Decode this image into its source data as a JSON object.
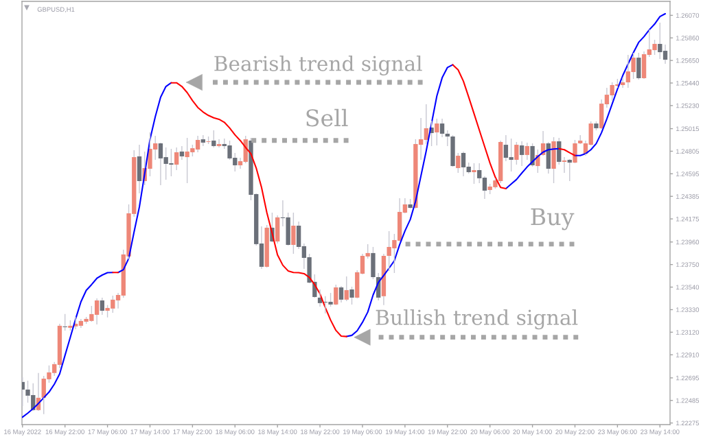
{
  "chart_data": {
    "type": "candlestick",
    "title": "GBPUSD,H1",
    "categories": [
      "16 May 2022",
      null,
      null,
      null,
      null,
      null,
      null,
      null,
      "16 May 22:00",
      null,
      null,
      null,
      null,
      null,
      null,
      null,
      "17 May 06:00",
      null,
      null,
      null,
      null,
      null,
      null,
      null,
      "17 May 14:00",
      null,
      null,
      null,
      null,
      null,
      null,
      null,
      "17 May 22:00",
      null,
      null,
      null,
      null,
      null,
      null,
      null,
      "18 May 06:00",
      null,
      null,
      null,
      null,
      null,
      null,
      null,
      "18 May 14:00",
      null,
      null,
      null,
      null,
      null,
      null,
      null,
      "18 May 22:00",
      null,
      null,
      null,
      null,
      null,
      null,
      null,
      "19 May 06:00",
      null,
      null,
      null,
      null,
      null,
      null,
      null,
      "19 May 14:00",
      null,
      null,
      null,
      null,
      null,
      null,
      null,
      "19 May 22:00",
      null,
      null,
      null,
      null,
      null,
      null,
      null,
      "20 May 06:00",
      null,
      null,
      null,
      null,
      null,
      null,
      null,
      "20 May 14:00",
      null,
      null,
      null,
      null,
      null,
      null,
      null,
      "20 May 22:00",
      null,
      null,
      null,
      null,
      null,
      null,
      null,
      "23 May 06:00",
      null,
      null,
      null,
      null,
      null,
      null,
      null,
      "23 May 14:00",
      null
    ],
    "ohlc": [
      [
        1.22657,
        1.22701,
        1.22433,
        1.22586
      ],
      [
        1.22586,
        1.22669,
        1.22465,
        1.22529
      ],
      [
        1.22535,
        1.22644,
        1.22388,
        1.22395
      ],
      [
        1.22395,
        1.2274,
        1.22388,
        1.2251
      ],
      [
        1.2251,
        1.22714,
        1.22357,
        1.22688
      ],
      [
        1.22682,
        1.2281,
        1.2265,
        1.22746
      ],
      [
        1.2274,
        1.22842,
        1.22714,
        1.22823
      ],
      [
        1.22816,
        1.23199,
        1.22784,
        1.2318
      ],
      [
        1.23174,
        1.23289,
        1.23135,
        1.23167
      ],
      [
        1.23161,
        1.23231,
        1.23135,
        1.2318
      ],
      [
        1.23174,
        1.23263,
        1.23148,
        1.23199
      ],
      [
        1.2318,
        1.23244,
        1.23161,
        1.23225
      ],
      [
        1.23218,
        1.23263,
        1.23199,
        1.23244
      ],
      [
        1.23225,
        1.23365,
        1.23218,
        1.23289
      ],
      [
        1.23282,
        1.23435,
        1.23193,
        1.23416
      ],
      [
        1.23416,
        1.23442,
        1.23282,
        1.2332
      ],
      [
        1.2332,
        1.23372,
        1.23257,
        1.23346
      ],
      [
        1.2334,
        1.23461,
        1.23301,
        1.23423
      ],
      [
        1.23416,
        1.23486,
        1.2334,
        1.23467
      ],
      [
        1.23461,
        1.23889,
        1.23442,
        1.23844
      ],
      [
        1.23825,
        1.2431,
        1.23799,
        1.24227
      ],
      [
        1.24221,
        1.24814,
        1.24195,
        1.2475
      ],
      [
        1.24757,
        1.24865,
        1.24412,
        1.24527
      ],
      [
        1.24527,
        1.24802,
        1.24489,
        1.24648
      ],
      [
        1.24642,
        1.2498,
        1.24572,
        1.24827
      ],
      [
        1.24821,
        1.24948,
        1.24725,
        1.24878
      ],
      [
        1.24878,
        1.24885,
        1.24489,
        1.24738
      ],
      [
        1.2475,
        1.2484,
        1.2454,
        1.24687
      ],
      [
        1.24693,
        1.24827,
        1.24572,
        1.2468
      ],
      [
        1.2468,
        1.2484,
        1.24629,
        1.24795
      ],
      [
        1.24802,
        1.24853,
        1.24725,
        1.24757
      ],
      [
        1.2475,
        1.24929,
        1.24508,
        1.24802
      ],
      [
        1.24795,
        1.24865,
        1.24757,
        1.24833
      ],
      [
        1.24821,
        1.24948,
        1.24795,
        1.2491
      ],
      [
        1.24916,
        1.24955,
        1.24853,
        1.24885
      ],
      [
        1.24891,
        1.24942,
        1.24872,
        1.24897
      ],
      [
        1.24904,
        1.24999,
        1.2484,
        1.24853
      ],
      [
        1.24853,
        1.24916,
        1.2484,
        1.24872
      ],
      [
        1.24872,
        1.24923,
        1.24827,
        1.24853
      ],
      [
        1.24859,
        1.24904,
        1.24725,
        1.24738
      ],
      [
        1.24744,
        1.24789,
        1.24616,
        1.24674
      ],
      [
        1.24674,
        1.24744,
        1.24642,
        1.24712
      ],
      [
        1.24706,
        1.24948,
        1.24693,
        1.24916
      ],
      [
        1.24904,
        1.24929,
        1.24348,
        1.24399
      ],
      [
        1.24406,
        1.24412,
        1.23927,
        1.2394
      ],
      [
        1.23946,
        1.24106,
        1.2371,
        1.23729
      ],
      [
        1.23729,
        1.24118,
        1.23723,
        1.24093
      ],
      [
        1.24093,
        1.24233,
        1.23959,
        1.23965
      ],
      [
        1.23965,
        1.24208,
        1.23946,
        1.24189
      ],
      [
        1.24189,
        1.24348,
        1.24106,
        1.24182
      ],
      [
        1.24189,
        1.24233,
        1.23927,
        1.23933
      ],
      [
        1.23933,
        1.24233,
        1.2385,
        1.24112
      ],
      [
        1.24112,
        1.2415,
        1.23895,
        1.23914
      ],
      [
        1.23921,
        1.23946,
        1.2371,
        1.23812
      ],
      [
        1.23818,
        1.2385,
        1.23576,
        1.23582
      ],
      [
        1.23589,
        1.23659,
        1.23442,
        1.23448
      ],
      [
        1.23442,
        1.23518,
        1.23359,
        1.23391
      ],
      [
        1.23403,
        1.23455,
        1.23295,
        1.23397
      ],
      [
        1.23403,
        1.23486,
        1.23359,
        1.23378
      ],
      [
        1.23378,
        1.23563,
        1.23372,
        1.23537
      ],
      [
        1.23537,
        1.2355,
        1.23397,
        1.23423
      ],
      [
        1.23423,
        1.2364,
        1.2341,
        1.23512
      ],
      [
        1.23518,
        1.23544,
        1.23378,
        1.23442
      ],
      [
        1.23442,
        1.23697,
        1.23435,
        1.23678
      ],
      [
        1.23665,
        1.2385,
        1.23659,
        1.23831
      ],
      [
        1.23825,
        1.2394,
        1.23806,
        1.23857
      ],
      [
        1.23857,
        1.23914,
        1.23614,
        1.23633
      ],
      [
        1.23633,
        1.23672,
        1.23416,
        1.23442
      ],
      [
        1.23455,
        1.2385,
        1.23372,
        1.23831
      ],
      [
        1.23831,
        1.24061,
        1.23691,
        1.23914
      ],
      [
        1.23901,
        1.24035,
        1.23672,
        1.23978
      ],
      [
        1.23972,
        1.24367,
        1.23965,
        1.2424
      ],
      [
        1.24233,
        1.24367,
        1.24227,
        1.2431
      ],
      [
        1.2431,
        1.24361,
        1.24272,
        1.24278
      ],
      [
        1.24278,
        1.24916,
        1.24272,
        1.24872
      ],
      [
        1.24865,
        1.25114,
        1.24725,
        1.24916
      ],
      [
        1.2491,
        1.25242,
        1.24872,
        1.25019
      ],
      [
        1.25025,
        1.25089,
        1.24853,
        1.24974
      ],
      [
        1.2498,
        1.25108,
        1.24859,
        1.25063
      ],
      [
        1.25063,
        1.25108,
        1.24936,
        1.24968
      ],
      [
        1.24968,
        1.24999,
        1.24853,
        1.24942
      ],
      [
        1.24942,
        1.24955,
        1.24661,
        1.24667
      ],
      [
        1.24648,
        1.24789,
        1.24604,
        1.24763
      ],
      [
        1.24789,
        1.24802,
        1.24572,
        1.24655
      ],
      [
        1.24661,
        1.24699,
        1.24597,
        1.2461
      ],
      [
        1.2461,
        1.24693,
        1.24501,
        1.24629
      ],
      [
        1.24629,
        1.24693,
        1.24508,
        1.24553
      ],
      [
        1.24559,
        1.24572,
        1.24361,
        1.24438
      ],
      [
        1.24444,
        1.24501,
        1.24406,
        1.24476
      ],
      [
        1.2447,
        1.24553,
        1.24457,
        1.24533
      ],
      [
        1.24527,
        1.24904,
        1.24508,
        1.24891
      ],
      [
        1.24865,
        1.24955,
        1.24712,
        1.24744
      ],
      [
        1.2475,
        1.24923,
        1.24616,
        1.24725
      ],
      [
        1.24725,
        1.24891,
        1.2468,
        1.24865
      ],
      [
        1.24859,
        1.24897,
        1.24667,
        1.2477
      ],
      [
        1.2477,
        1.24885,
        1.24725,
        1.24853
      ],
      [
        1.24853,
        1.24878,
        1.24661,
        1.24674
      ],
      [
        1.24667,
        1.24821,
        1.24604,
        1.2477
      ],
      [
        1.2477,
        1.24993,
        1.24763,
        1.24878
      ],
      [
        1.24878,
        1.24891,
        1.24597,
        1.24642
      ],
      [
        1.24642,
        1.24936,
        1.24508,
        1.24897
      ],
      [
        1.24897,
        1.24929,
        1.2468,
        1.24706
      ],
      [
        1.24706,
        1.2475,
        1.24604,
        1.24719
      ],
      [
        1.24725,
        1.24731,
        1.24527,
        1.24699
      ],
      [
        1.24699,
        1.2491,
        1.24693,
        1.24878
      ],
      [
        1.24878,
        1.24955,
        1.24872,
        1.24904
      ],
      [
        1.24782,
        1.24904,
        1.24763,
        1.24878
      ],
      [
        1.24865,
        1.25082,
        1.24859,
        1.25063
      ],
      [
        1.25063,
        1.25082,
        1.24999,
        1.25019
      ],
      [
        1.25019,
        1.25287,
        1.25012,
        1.25248
      ],
      [
        1.25242,
        1.25395,
        1.2521,
        1.25331
      ],
      [
        1.25325,
        1.25446,
        1.25274,
        1.25421
      ],
      [
        1.25414,
        1.25478,
        1.25395,
        1.25427
      ],
      [
        1.25421,
        1.25491,
        1.25395,
        1.25446
      ],
      [
        1.25446,
        1.25702,
        1.25395,
        1.25548
      ],
      [
        1.25542,
        1.25721,
        1.25478,
        1.25676
      ],
      [
        1.25676,
        1.25721,
        1.25472,
        1.25485
      ],
      [
        1.25485,
        1.25734,
        1.25478,
        1.25708
      ],
      [
        1.25702,
        1.25938,
        1.25683,
        1.25753
      ],
      [
        1.25746,
        1.25842,
        1.25702,
        1.25804
      ],
      [
        1.25804,
        1.26002,
        1.25663,
        1.25727
      ],
      [
        1.2574,
        1.25797,
        1.25619,
        1.25657
      ]
    ],
    "colors": [
      "#6b7079",
      "#6b7079",
      "#6b7079",
      "#ee8778",
      "#ee8778",
      "#ee8778",
      "#ee8778",
      "#ee8778",
      "#6b7079",
      "#ee8778",
      "#ee8778",
      "#ee8778",
      "#ee8778",
      "#ee8778",
      "#ee8778",
      "#6b7079",
      "#ee8778",
      "#ee8778",
      "#ee8778",
      "#ee8778",
      "#ee8778",
      "#ee8778",
      "#6b7079",
      "#ee8778",
      "#ee8778",
      "#ee8778",
      "#6b7079",
      "#6b7079",
      "#6b7079",
      "#ee8778",
      "#6b7079",
      "#ee8778",
      "#ee8778",
      "#ee8778",
      "#6b7079",
      "#ee8778",
      "#6b7079",
      "#ee8778",
      "#6b7079",
      "#6b7079",
      "#6b7079",
      "#ee8778",
      "#ee8778",
      "#6b7079",
      "#6b7079",
      "#6b7079",
      "#ee8778",
      "#6b7079",
      "#ee8778",
      "#6b7079",
      "#6b7079",
      "#ee8778",
      "#6b7079",
      "#6b7079",
      "#6b7079",
      "#6b7079",
      "#6b7079",
      "#6b7079",
      "#6b7079",
      "#ee8778",
      "#6b7079",
      "#ee8778",
      "#6b7079",
      "#ee8778",
      "#ee8778",
      "#ee8778",
      "#6b7079",
      "#6b7079",
      "#ee8778",
      "#ee8778",
      "#ee8778",
      "#ee8778",
      "#ee8778",
      "#6b7079",
      "#ee8778",
      "#ee8778",
      "#ee8778",
      "#6b7079",
      "#ee8778",
      "#6b7079",
      "#6b7079",
      "#6b7079",
      "#ee8778",
      "#6b7079",
      "#6b7079",
      "#ee8778",
      "#6b7079",
      "#6b7079",
      "#ee8778",
      "#ee8778",
      "#ee8778",
      "#6b7079",
      "#6b7079",
      "#ee8778",
      "#6b7079",
      "#ee8778",
      "#6b7079",
      "#ee8778",
      "#ee8778",
      "#6b7079",
      "#ee8778",
      "#6b7079",
      "#ee8778",
      "#6b7079",
      "#ee8778",
      "#ee8778",
      "#ee8778",
      "#ee8778",
      "#6b7079",
      "#ee8778",
      "#ee8778",
      "#ee8778",
      "#ee8778",
      "#ee8778",
      "#ee8778",
      "#ee8778",
      "#6b7079",
      "#ee8778",
      "#ee8778",
      "#ee8778",
      "#6b7079",
      "#6b7079"
    ],
    "color": "#c8c8d2",
    "series": [
      {
        "type": "line",
        "color": "#0000ff",
        "values": [
          1.22329,
          1.22367,
          1.22408,
          1.22457,
          1.2251,
          1.22563,
          1.22637,
          1.22733,
          1.22904,
          1.23073,
          1.23244,
          1.23403,
          1.2351,
          1.23563,
          1.23622,
          1.23652,
          1.23674,
          1.23676,
          null,
          null,
          null,
          null,
          null,
          null,
          null,
          null,
          null,
          null,
          null,
          null,
          null,
          null,
          null,
          null,
          null,
          null,
          null,
          null,
          null,
          null,
          null,
          null,
          null,
          null,
          null,
          null,
          null,
          null,
          null,
          null,
          null,
          null,
          null,
          null,
          null,
          null,
          null,
          null,
          null,
          null,
          null,
          1.2308,
          1.23091,
          1.23133,
          1.23212,
          1.23308,
          1.23467,
          1.23584,
          1.23648,
          1.23716,
          1.23786,
          1.23935,
          1.24063,
          1.2417,
          1.2434,
          1.24574,
          1.24808,
          1.25063,
          1.25319,
          1.25489,
          1.25585,
          1.2561,
          null,
          null,
          null,
          null,
          null,
          null,
          null,
          null,
          null,
          null,
          null,
          null,
          null,
          null,
          null,
          null,
          null,
          null,
          null,
          null,
          null,
          null,
          1.24765,
          1.24765,
          1.24782,
          1.24819,
          1.24876,
          1.24978,
          1.25106,
          1.25244,
          1.25383,
          1.2551,
          1.25617,
          1.25723,
          1.25819,
          1.25872,
          1.25936,
          1.25989,
          1.26059,
          1.26085
        ]
      },
      {
        "type": "line",
        "color": "#0000ff",
        "values": [
          null,
          null,
          null,
          null,
          null,
          null,
          null,
          null,
          null,
          null,
          null,
          null,
          null,
          null,
          null,
          null,
          null,
          null,
          1.23676,
          1.23702,
          1.23808,
          1.24053,
          1.24286,
          1.24595,
          1.24915,
          1.25127,
          1.25308,
          1.25408,
          1.25442,
          null,
          null,
          null,
          null,
          null,
          null,
          null,
          null,
          null,
          null,
          null,
          null,
          null,
          null,
          null,
          null,
          null,
          null,
          null,
          null,
          null,
          null,
          null,
          null,
          null,
          null,
          null,
          null,
          null,
          null,
          null,
          null,
          null,
          null,
          null,
          null,
          null,
          null,
          null,
          null,
          null,
          null,
          null,
          null,
          null,
          null,
          null,
          null,
          null,
          null,
          null,
          null,
          null,
          null,
          null,
          null,
          null,
          null,
          null,
          null,
          null,
          null,
          1.24457,
          1.245,
          1.24542,
          1.24602,
          1.24659,
          1.24708,
          1.24755,
          1.24797,
          1.24819,
          1.24825,
          1.24829,
          null,
          null,
          null,
          null,
          null,
          null,
          null,
          null,
          null,
          null,
          null,
          null,
          null,
          null,
          null,
          null,
          null,
          null,
          null,
          null
        ]
      },
      {
        "type": "line",
        "color": "#ff0000",
        "values": [
          null,
          null,
          null,
          null,
          null,
          null,
          null,
          null,
          null,
          null,
          null,
          null,
          null,
          null,
          null,
          null,
          null,
          1.23676,
          1.23676,
          null,
          null,
          null,
          null,
          null,
          null,
          null,
          null,
          null,
          null,
          null,
          null,
          null,
          null,
          null,
          null,
          null,
          null,
          null,
          null,
          null,
          null,
          null,
          null,
          null,
          null,
          null,
          null,
          null,
          null,
          null,
          null,
          null,
          null,
          null,
          null,
          null,
          null,
          null,
          null,
          null,
          null,
          null,
          null,
          null,
          null,
          null,
          null,
          null,
          null,
          null,
          null,
          null,
          null,
          null,
          null,
          null,
          null,
          null,
          null,
          null,
          null,
          1.2561,
          1.25563,
          1.25457,
          1.25308,
          1.25155,
          1.25001,
          1.24848,
          1.24695,
          1.24563,
          1.24468,
          1.24457,
          null,
          null,
          null,
          null,
          null,
          null,
          null,
          null,
          null,
          null,
          null,
          null,
          null,
          null,
          null,
          null,
          null,
          null,
          null,
          null,
          null,
          null,
          null,
          null,
          null,
          null,
          null,
          null,
          null,
          null
        ]
      },
      {
        "type": "line",
        "color": "#ff0000",
        "values": [
          null,
          null,
          null,
          null,
          null,
          null,
          null,
          null,
          null,
          null,
          null,
          null,
          null,
          null,
          null,
          null,
          null,
          null,
          null,
          null,
          null,
          null,
          null,
          null,
          null,
          null,
          null,
          null,
          1.25442,
          1.25442,
          1.25408,
          1.25351,
          1.25276,
          1.25212,
          1.2517,
          1.25138,
          1.25116,
          1.25102,
          1.25074,
          1.25021,
          1.24957,
          1.24904,
          1.2484,
          1.24782,
          1.24648,
          1.24468,
          1.24233,
          1.24042,
          1.2384,
          1.23744,
          1.23691,
          1.23676,
          1.23674,
          1.23665,
          1.23631,
          1.23563,
          1.23478,
          1.2335,
          1.23233,
          1.23137,
          1.23084,
          1.2308,
          null,
          null,
          null,
          null,
          null,
          null,
          null,
          null,
          null,
          null,
          null,
          null,
          null,
          null,
          null,
          null,
          null,
          null,
          null,
          null,
          null,
          null,
          null,
          null,
          null,
          null,
          null,
          null,
          null,
          null,
          null,
          null,
          null,
          null,
          null,
          null,
          null,
          null,
          null,
          1.24829,
          1.24819,
          1.24791,
          1.24765,
          null,
          null,
          null,
          null,
          null,
          null,
          null,
          null,
          null,
          null,
          null,
          null,
          null,
          null,
          null,
          null,
          null
        ]
      }
    ],
    "ylim": [
      1.2226,
      1.262
    ],
    "yticks": [
      {
        "value": 1.2607,
        "label": "1.26070"
      },
      {
        "value": 1.2586,
        "label": "1.25860"
      },
      {
        "value": 1.2565,
        "label": "1.25650"
      },
      {
        "value": 1.2544,
        "label": "1.25440"
      },
      {
        "value": 1.2523,
        "label": "1.25230"
      },
      1.25015,
      1.24805,
      1.24595,
      1.24385,
      1.24175,
      {
        "value": 1.2396,
        "label": "1.23960"
      },
      {
        "value": 1.2375,
        "label": "1.23750"
      },
      {
        "value": 1.2354,
        "label": "1.23540"
      },
      {
        "value": 1.2333,
        "label": "1.23330"
      },
      {
        "value": 1.2312,
        "label": "1.23120"
      },
      {
        "value": 1.2291,
        "label": "1.22910"
      },
      1.22695,
      1.22485,
      1.22275
    ],
    "annotations": [
      "Bearish trend signal",
      "Sell",
      "Buy",
      "Bullish trend signal"
    ]
  }
}
